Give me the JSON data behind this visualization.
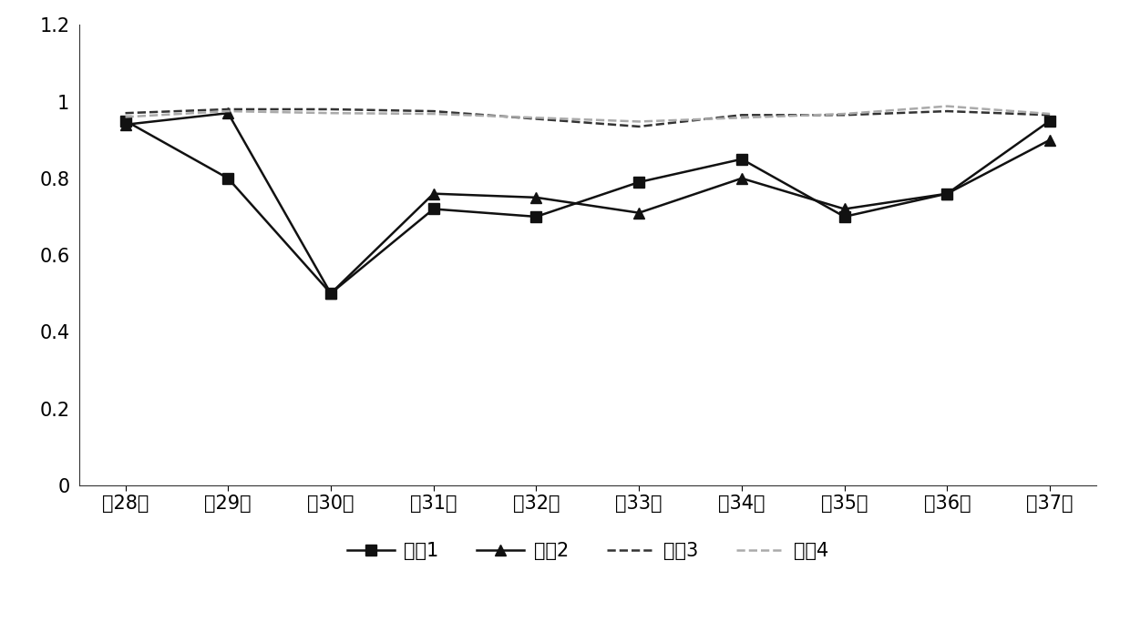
{
  "x_labels": [
    "的28周",
    "的29周",
    "的30周",
    "的31周",
    "的32周",
    "的33周",
    "的34周",
    "的35周",
    "的36周",
    "的37周"
  ],
  "x_values": [
    0,
    1,
    2,
    3,
    4,
    5,
    6,
    7,
    8,
    9
  ],
  "series": {
    "平靤1": [
      0.95,
      0.8,
      0.5,
      0.72,
      0.7,
      0.79,
      0.85,
      0.7,
      0.76,
      0.95
    ],
    "平靤2": [
      0.94,
      0.97,
      0.5,
      0.76,
      0.75,
      0.71,
      0.8,
      0.72,
      0.76,
      0.9
    ],
    "平靤3": [
      0.97,
      0.98,
      0.98,
      0.975,
      0.955,
      0.935,
      0.965,
      0.965,
      0.975,
      0.965
    ],
    "平靤4": [
      0.96,
      0.975,
      0.97,
      0.968,
      0.958,
      0.948,
      0.958,
      0.968,
      0.988,
      0.968
    ]
  },
  "line_styles": {
    "平靤1": "-",
    "平靤2": "-",
    "平靤3": "--",
    "平靤4": "--"
  },
  "markers": {
    "平靤1": "s",
    "平靤2": "^",
    "平靤3": "",
    "平靤4": ""
  },
  "colors": {
    "平靤1": "#111111",
    "平靤2": "#111111",
    "平靤3": "#333333",
    "平靤4": "#aaaaaa"
  },
  "linewidths": {
    "平靤1": 1.8,
    "平靤2": 1.8,
    "平靤3": 1.8,
    "平靤4": 1.8
  },
  "ylim": [
    0,
    1.2
  ],
  "ytick_values": [
    0,
    0.2,
    0.4,
    0.6,
    0.8,
    1.0,
    1.2
  ],
  "ytick_labels": [
    "0",
    "0.2",
    "0.4",
    "0.6",
    "0.8",
    "1",
    "1.2"
  ],
  "background_color": "#ffffff",
  "legend_labels": [
    "平靤1",
    "平靤2",
    "平靤3",
    "平靤4"
  ],
  "font_size": 15,
  "marker_size": 9
}
